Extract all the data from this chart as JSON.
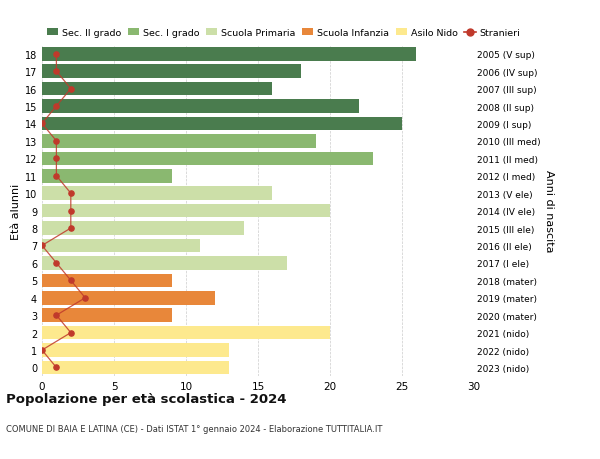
{
  "ages": [
    0,
    1,
    2,
    3,
    4,
    5,
    6,
    7,
    8,
    9,
    10,
    11,
    12,
    13,
    14,
    15,
    16,
    17,
    18
  ],
  "years": [
    "2023 (nido)",
    "2022 (nido)",
    "2021 (nido)",
    "2020 (mater)",
    "2019 (mater)",
    "2018 (mater)",
    "2017 (I ele)",
    "2016 (II ele)",
    "2015 (III ele)",
    "2014 (IV ele)",
    "2013 (V ele)",
    "2012 (I med)",
    "2011 (II med)",
    "2010 (III med)",
    "2009 (I sup)",
    "2008 (II sup)",
    "2007 (III sup)",
    "2006 (IV sup)",
    "2005 (V sup)"
  ],
  "bar_values": [
    13,
    13,
    20,
    9,
    12,
    9,
    17,
    11,
    14,
    20,
    16,
    9,
    23,
    19,
    25,
    22,
    16,
    18,
    26
  ],
  "bar_colors": [
    "#fde98e",
    "#fde98e",
    "#fde98e",
    "#e8873a",
    "#e8873a",
    "#e8873a",
    "#ccdfa8",
    "#ccdfa8",
    "#ccdfa8",
    "#ccdfa8",
    "#ccdfa8",
    "#8ab870",
    "#8ab870",
    "#8ab870",
    "#4a7c4e",
    "#4a7c4e",
    "#4a7c4e",
    "#4a7c4e",
    "#4a7c4e"
  ],
  "stranieri_x": [
    1,
    0,
    2,
    1,
    3,
    2,
    1,
    0,
    2,
    2,
    2,
    1,
    1,
    1,
    0,
    1,
    2,
    1,
    1
  ],
  "legend_labels": [
    "Sec. II grado",
    "Sec. I grado",
    "Scuola Primaria",
    "Scuola Infanzia",
    "Asilo Nido",
    "Stranieri"
  ],
  "legend_colors": [
    "#4a7c4e",
    "#8ab870",
    "#ccdfa8",
    "#e8873a",
    "#fde98e",
    "#c0392b"
  ],
  "title": "Popolazione per età scolastica - 2024",
  "subtitle": "COMUNE DI BAIA E LATINA (CE) - Dati ISTAT 1° gennaio 2024 - Elaborazione TUTTITALIA.IT",
  "ylabel_left": "Età alunni",
  "ylabel_right": "Anni di nascita",
  "xlim": [
    0,
    30
  ],
  "background_color": "#ffffff",
  "grid_color": "#cccccc",
  "bar_height": 0.78
}
